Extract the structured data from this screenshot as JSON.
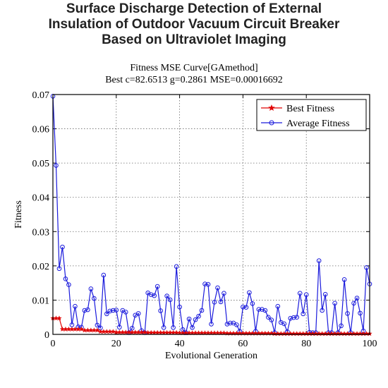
{
  "header": {
    "lines": [
      "Surface Discharge Detection of External",
      "Insulation of Outdoor Vacuum Circuit Breaker",
      "Based on Ultraviolet Imaging"
    ]
  },
  "chart_data": {
    "type": "line",
    "title": "Fitness MSE Curve[GAmethod]",
    "subtitle": "Best c=82.6513 g=0.2861 MSE=0.00016692",
    "xlabel": "Evolutional Generation",
    "ylabel": "Fitness",
    "xlim": [
      0,
      100
    ],
    "ylim": [
      0,
      0.07
    ],
    "xticks": [
      0,
      20,
      40,
      60,
      80,
      100
    ],
    "xtick_labels": [
      "0",
      "20",
      "40",
      "60",
      "80",
      "100"
    ],
    "yticks": [
      0,
      0.01,
      0.02,
      0.03,
      0.04,
      0.05,
      0.06,
      0.07
    ],
    "ytick_labels": [
      "0",
      "0.01",
      "0.02",
      "0.03",
      "0.04",
      "0.05",
      "0.06",
      "0.07"
    ],
    "grid": true,
    "legend_position": "top-right",
    "x": [
      0,
      1,
      2,
      3,
      4,
      5,
      6,
      7,
      8,
      9,
      10,
      11,
      12,
      13,
      14,
      15,
      16,
      17,
      18,
      19,
      20,
      21,
      22,
      23,
      24,
      25,
      26,
      27,
      28,
      29,
      30,
      31,
      32,
      33,
      34,
      35,
      36,
      37,
      38,
      39,
      40,
      41,
      42,
      43,
      44,
      45,
      46,
      47,
      48,
      49,
      50,
      51,
      52,
      53,
      54,
      55,
      56,
      57,
      58,
      59,
      60,
      61,
      62,
      63,
      64,
      65,
      66,
      67,
      68,
      69,
      70,
      71,
      72,
      73,
      74,
      75,
      76,
      77,
      78,
      79,
      80,
      81,
      82,
      83,
      84,
      85,
      86,
      87,
      88,
      89,
      90,
      91,
      92,
      93,
      94,
      95,
      96,
      97,
      98,
      99,
      100
    ],
    "series": [
      {
        "name": "Best Fitness",
        "color": "#e00000",
        "marker": "star",
        "values": [
          0.0047,
          0.0047,
          0.0047,
          0.0015,
          0.0015,
          0.0015,
          0.0015,
          0.0015,
          0.0015,
          0.0015,
          0.0012,
          0.0012,
          0.0012,
          0.0012,
          0.0012,
          0.0008,
          0.0008,
          0.0008,
          0.0008,
          0.0008,
          0.0006,
          0.0006,
          0.0006,
          0.0006,
          0.0006,
          0.0006,
          0.0006,
          0.0006,
          0.0006,
          0.0006,
          0.0005,
          0.0005,
          0.0005,
          0.0005,
          0.0005,
          0.0005,
          0.0005,
          0.0005,
          0.0005,
          0.0005,
          0.0004,
          0.0004,
          0.0004,
          0.0004,
          0.0004,
          0.0004,
          0.0004,
          0.0004,
          0.0004,
          0.0004,
          0.0004,
          0.0004,
          0.0004,
          0.0004,
          0.0004,
          0.0003,
          0.0003,
          0.0003,
          0.0003,
          0.0003,
          0.0003,
          0.0003,
          0.0003,
          0.0003,
          0.0003,
          0.0003,
          0.0003,
          0.0003,
          0.0003,
          0.0003,
          0.0002,
          0.0002,
          0.0002,
          0.0002,
          0.0002,
          0.0002,
          0.0002,
          0.0002,
          0.0002,
          0.0002,
          0.0002,
          0.0002,
          0.0002,
          0.0002,
          0.0002,
          0.0002,
          0.0002,
          0.0002,
          0.0002,
          0.0002,
          0.0002,
          0.0002,
          0.0002,
          0.0002,
          0.0002,
          0.0002,
          0.0002,
          0.0002,
          0.0002,
          0.0002,
          0.0002
        ]
      },
      {
        "name": "Average Fitness",
        "color": "#1a1adc",
        "marker": "circle",
        "values": [
          0.0695,
          0.0493,
          0.0192,
          0.0255,
          0.0162,
          0.0145,
          0.0028,
          0.0082,
          0.0022,
          0.0021,
          0.007,
          0.0072,
          0.0133,
          0.0105,
          0.0027,
          0.0019,
          0.0173,
          0.006,
          0.0068,
          0.007,
          0.0071,
          0.0021,
          0.007,
          0.0065,
          0.0005,
          0.0018,
          0.0056,
          0.0061,
          0.0011,
          0.0005,
          0.0121,
          0.0116,
          0.0113,
          0.014,
          0.0069,
          0.002,
          0.0112,
          0.0101,
          0.002,
          0.0198,
          0.008,
          0.0014,
          0.0005,
          0.0045,
          0.002,
          0.0043,
          0.0053,
          0.007,
          0.0147,
          0.0146,
          0.003,
          0.0094,
          0.0136,
          0.0095,
          0.012,
          0.003,
          0.0033,
          0.0033,
          0.0028,
          0.0009,
          0.008,
          0.0079,
          0.0122,
          0.009,
          0.0009,
          0.0073,
          0.0073,
          0.007,
          0.005,
          0.0042,
          0.0005,
          0.0082,
          0.0035,
          0.0031,
          0.0008,
          0.0047,
          0.0049,
          0.005,
          0.012,
          0.006,
          0.0116,
          0.0006,
          0.0005,
          0.0005,
          0.0215,
          0.007,
          0.0117,
          0.0005,
          0.0005,
          0.0091,
          0.0005,
          0.0025,
          0.016,
          0.0061,
          0.0005,
          0.0091,
          0.0106,
          0.0062,
          0.001,
          0.0195,
          0.0147
        ]
      }
    ]
  }
}
